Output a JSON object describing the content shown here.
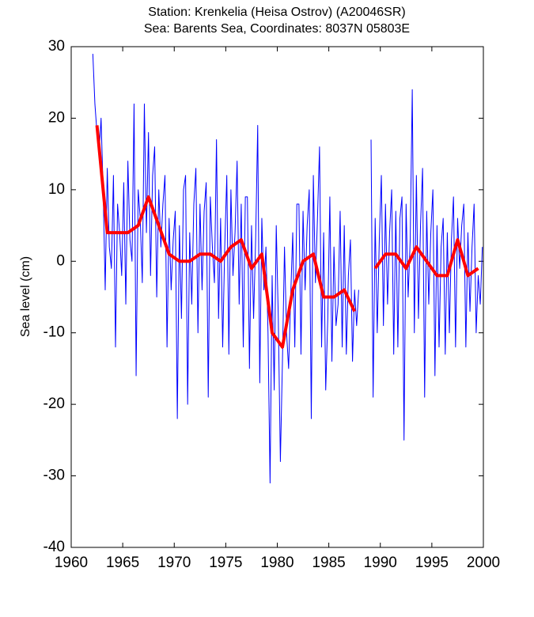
{
  "chart_data": {
    "type": "line",
    "title": [
      "Station: Krenkelia (Heisa Ostrov)  (A20046SR)",
      "Sea: Barents Sea, Coordinates: 8037N 05803E"
    ],
    "y_label": "Sea level (cm)",
    "xlim": [
      1960,
      2000
    ],
    "xticks": [
      1960,
      1965,
      1970,
      1975,
      1980,
      1985,
      1990,
      1995,
      2000
    ],
    "ylim": [
      -40,
      30
    ],
    "yticks": [
      -40,
      -30,
      -20,
      -10,
      0,
      10,
      20,
      30
    ],
    "series": [
      {
        "color": "#0000ff",
        "x": [
          1962.1,
          1962.3,
          1962.5,
          1962.7,
          1962.9,
          1963.1,
          1963.3,
          1963.5,
          1963.7,
          1963.9,
          1964.1,
          1964.3,
          1964.5,
          1964.7,
          1964.9,
          1965.1,
          1965.3,
          1965.5,
          1965.7,
          1965.9,
          1966.1,
          1966.3,
          1966.5,
          1966.7,
          1966.9,
          1967.1,
          1967.3,
          1967.5,
          1967.7,
          1967.9,
          1968.1,
          1968.3,
          1968.5,
          1968.7,
          1968.9,
          1969.1,
          1969.3,
          1969.5,
          1969.7,
          1969.9,
          1970.1,
          1970.3,
          1970.5,
          1970.7,
          1970.9,
          1971.1,
          1971.3,
          1971.5,
          1971.7,
          1971.9,
          1972.1,
          1972.3,
          1972.5,
          1972.7,
          1972.9,
          1973.1,
          1973.3,
          1973.5,
          1973.7,
          1973.9,
          1974.1,
          1974.3,
          1974.5,
          1974.7,
          1974.9,
          1975.1,
          1975.3,
          1975.5,
          1975.7,
          1975.9,
          1976.1,
          1976.3,
          1976.5,
          1976.7,
          1976.9,
          1977.1,
          1977.3,
          1977.5,
          1977.7,
          1977.9,
          1978.1,
          1978.3,
          1978.5,
          1978.7,
          1978.9,
          1979.1,
          1979.3,
          1979.5,
          1979.7,
          1979.9,
          1980.1,
          1980.3,
          1980.5,
          1980.7,
          1980.9,
          1981.1,
          1981.3,
          1981.5,
          1981.7,
          1981.9,
          1982.1,
          1982.3,
          1982.5,
          1982.7,
          1982.9,
          1983.1,
          1983.3,
          1983.5,
          1983.7,
          1983.9,
          1984.1,
          1984.3,
          1984.5,
          1984.7,
          1984.9,
          1985.1,
          1985.3,
          1985.5,
          1985.7,
          1985.9,
          1986.1,
          1986.3,
          1986.5,
          1986.7,
          1986.9,
          1987.1,
          1987.3,
          1987.5,
          1987.7,
          1987.9,
          1988.1,
          1988.3,
          1988.5,
          1988.7,
          1988.9,
          1989.1,
          1989.3,
          1989.5,
          1989.7,
          1989.9,
          1990.1,
          1990.3,
          1990.5,
          1990.7,
          1990.9,
          1991.1,
          1991.3,
          1991.5,
          1991.7,
          1991.9,
          1992.1,
          1992.3,
          1992.5,
          1992.7,
          1992.9,
          1993.1,
          1993.3,
          1993.5,
          1993.7,
          1993.9,
          1994.1,
          1994.3,
          1994.5,
          1994.7,
          1994.9,
          1995.1,
          1995.3,
          1995.5,
          1995.7,
          1995.9,
          1996.1,
          1996.3,
          1996.5,
          1996.7,
          1996.9,
          1997.1,
          1997.3,
          1997.5,
          1997.7,
          1997.9,
          1998.1,
          1998.3,
          1998.5,
          1998.7,
          1998.9,
          1999.1,
          1999.3,
          1999.5,
          1999.7,
          1999.9
        ],
        "values": [
          29,
          22,
          18,
          15,
          20,
          10,
          -4,
          13,
          2,
          -1,
          12,
          -12,
          8,
          4,
          -2,
          11,
          -6,
          14,
          3,
          0,
          22,
          -16,
          10,
          6,
          -3,
          22,
          4,
          18,
          -2,
          12,
          16,
          -5,
          10,
          2,
          8,
          12,
          -12,
          6,
          -4,
          3,
          7,
          -22,
          5,
          -8,
          10,
          12,
          -20,
          4,
          -6,
          8,
          13,
          -10,
          8,
          -4,
          7,
          11,
          -19,
          9,
          2,
          -3,
          17,
          -8,
          6,
          -12,
          2,
          12,
          -13,
          10,
          -2,
          4,
          14,
          -6,
          8,
          -12,
          9,
          9,
          -15,
          5,
          -8,
          3,
          19,
          -17,
          6,
          -4,
          2,
          -10,
          -31,
          -2,
          -18,
          5,
          -8,
          -28,
          -14,
          2,
          -10,
          -15,
          -5,
          4,
          -12,
          8,
          8,
          -13,
          7,
          -4,
          5,
          10,
          -22,
          12,
          -3,
          6,
          16,
          -12,
          4,
          -18,
          -8,
          9,
          -14,
          2,
          -9,
          -6,
          7,
          -12,
          5,
          -13,
          -2,
          3,
          -14,
          -4,
          -9,
          -4,
          null,
          null,
          null,
          null,
          null,
          17,
          -19,
          6,
          -10,
          3,
          12,
          -9,
          8,
          -6,
          4,
          10,
          -13,
          7,
          -12,
          6,
          9,
          -25,
          8,
          -5,
          3,
          24,
          -10,
          12,
          -8,
          5,
          13,
          -19,
          7,
          -6,
          4,
          10,
          -16,
          5,
          -12,
          2,
          6,
          -13,
          4,
          -10,
          3,
          9,
          -12,
          6,
          -1,
          5,
          8,
          -12,
          4,
          -7,
          2,
          8,
          -10,
          -2,
          -6,
          2
        ]
      },
      {
        "color": "#ff0000",
        "x": [
          1962.5,
          1963.5,
          1964.5,
          1965.5,
          1966.5,
          1967.5,
          1968.5,
          1969.5,
          1970.5,
          1971.5,
          1972.5,
          1973.5,
          1974.5,
          1975.5,
          1976.5,
          1977.5,
          1978.5,
          1979.5,
          1980.5,
          1981.5,
          1982.5,
          1983.5,
          1984.5,
          1985.5,
          1986.5,
          1987.5,
          1988.5,
          1989.5,
          1990.5,
          1991.5,
          1992.5,
          1993.5,
          1994.5,
          1995.5,
          1996.5,
          1997.5,
          1998.5,
          1999.5
        ],
        "values": [
          19,
          4,
          4,
          4,
          5,
          9,
          5,
          1,
          0,
          0,
          1,
          1,
          0,
          2,
          3,
          -1,
          1,
          -10,
          -12,
          -4,
          0,
          1,
          -5,
          -5,
          -4,
          -7,
          null,
          -1,
          1,
          1,
          -1,
          2,
          0,
          -2,
          -2,
          3,
          -2,
          -1
        ]
      }
    ]
  }
}
